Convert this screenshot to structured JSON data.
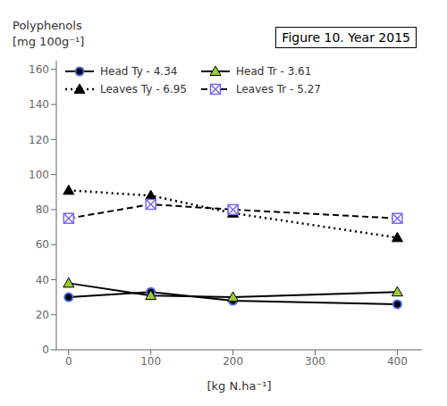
{
  "chart_data": {
    "type": "line",
    "ylabel": [
      "Polyphenols",
      "[mg 100g⁻¹]"
    ],
    "xlabel": "[kg N.ha⁻¹]",
    "annotation": "Figure 10. Year 2015",
    "x": [
      0,
      100,
      200,
      400
    ],
    "series": [
      {
        "name": "Head Ty - 4.34",
        "color": "#4169e1",
        "marker": "circle",
        "line_style": "solid",
        "values": [
          30,
          33,
          28,
          26
        ]
      },
      {
        "name": "Head Tr - 3.61",
        "color": "#9acd32",
        "marker": "triangle",
        "line_style": "solid",
        "values": [
          38,
          31,
          30,
          33
        ]
      },
      {
        "name": "Leaves Ty - 6.95",
        "color": "#000000",
        "marker": "triangle",
        "line_style": "dotted",
        "values": [
          91,
          88,
          78,
          64
        ]
      },
      {
        "name": "Leaves Tr - 5.27",
        "color": "#7b68ee",
        "marker": "square",
        "line_style": "dashed",
        "values": [
          75,
          83,
          80,
          75
        ]
      }
    ],
    "color": "#000000",
    "xlim": [
      -15,
      430
    ],
    "xticks": [
      0,
      100,
      200,
      300,
      400
    ],
    "ylim": [
      0,
      165
    ],
    "yticks": [
      0,
      20,
      40,
      60,
      80,
      100,
      120,
      140,
      160
    ],
    "grid": false,
    "legend": "upper left"
  }
}
